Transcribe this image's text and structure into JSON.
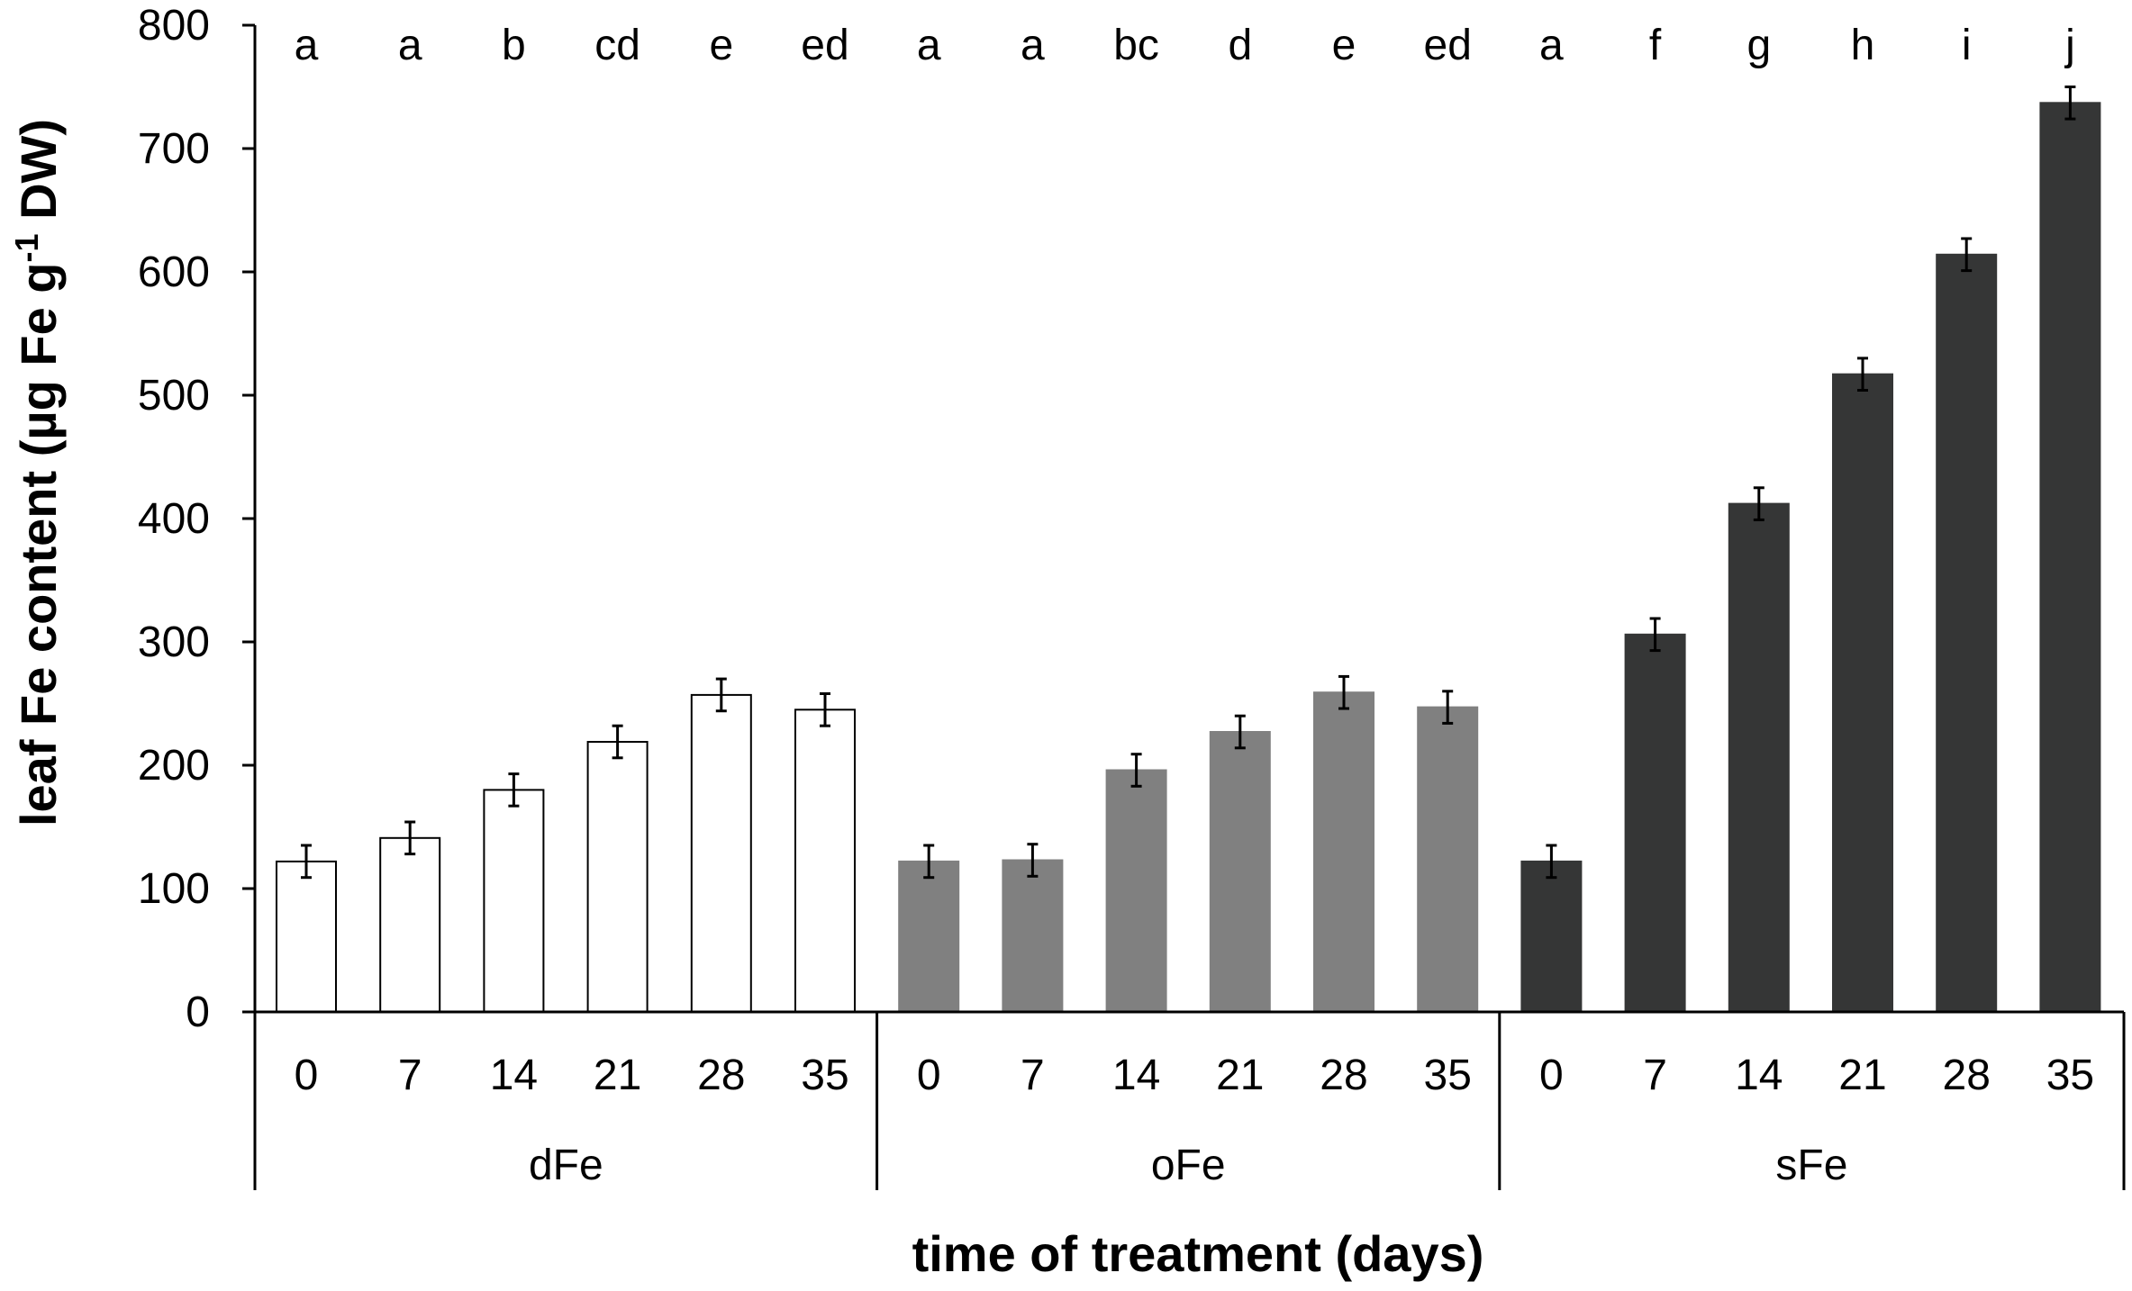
{
  "chart_data": {
    "type": "bar",
    "title": "",
    "xlabel": "time of treatment (days)",
    "ylabel_main": "leaf Fe content (µg Fe g",
    "ylabel_sup": "-1",
    "ylabel_end": " DW)",
    "ylim": [
      0,
      800
    ],
    "yticks": [
      "0",
      "100",
      "200",
      "300",
      "400",
      "500",
      "600",
      "700",
      "800"
    ],
    "grid": false,
    "groups": [
      {
        "name": "dFe",
        "color": "#ffffff",
        "outline": "#000000",
        "days": [
          "0",
          "7",
          "14",
          "21",
          "28",
          "35"
        ],
        "values": [
          122,
          141,
          180,
          219,
          257,
          245
        ],
        "errors": [
          13,
          13,
          13,
          13,
          13,
          13
        ],
        "letters": [
          "a",
          "a",
          "b",
          "cd",
          "e",
          "ed"
        ]
      },
      {
        "name": "oFe",
        "color": "#808080",
        "outline": "#808080",
        "days": [
          "0",
          "7",
          "14",
          "21",
          "28",
          "35"
        ],
        "values": [
          122,
          123,
          196,
          227,
          259,
          247
        ],
        "errors": [
          13,
          13,
          13,
          13,
          13,
          13
        ],
        "letters": [
          "a",
          "a",
          "bc",
          "d",
          "e",
          "ed"
        ]
      },
      {
        "name": "sFe",
        "color": "#353636",
        "outline": "#353636",
        "days": [
          "0",
          "7",
          "14",
          "21",
          "28",
          "35"
        ],
        "values": [
          122,
          306,
          412,
          517,
          614,
          737
        ],
        "errors": [
          13,
          13,
          13,
          13,
          13,
          13
        ],
        "letters": [
          "a",
          "f",
          "g",
          "h",
          "i",
          "j"
        ]
      }
    ]
  }
}
